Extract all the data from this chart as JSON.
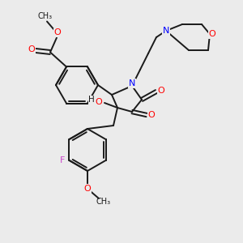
{
  "bg_color": "#ebebeb",
  "bond_color": "#1a1a1a",
  "atom_colors": {
    "O": "#ff0000",
    "N": "#0000ff",
    "F": "#cc44cc",
    "C": "#1a1a1a",
    "H": "#1a1a1a"
  }
}
